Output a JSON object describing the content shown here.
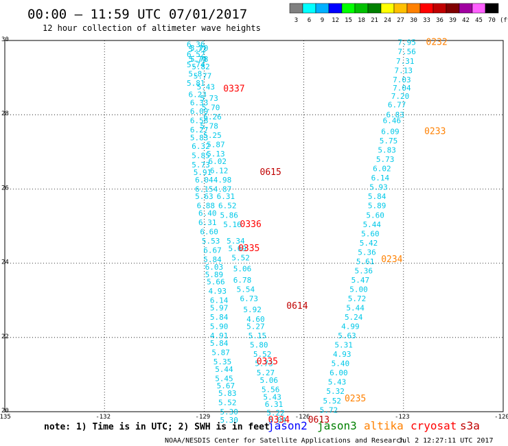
{
  "header": {
    "title": "00:00 – 11:59 UTC 07/01/2017",
    "subtitle": "12 hour collection of altimeter wave heights"
  },
  "color_scale": {
    "labels": [
      "3",
      "6",
      "9",
      "12",
      "15",
      "18",
      "21",
      "24",
      "27",
      "30",
      "33",
      "36",
      "39",
      "42",
      "45",
      "70"
    ],
    "unit": "(ft)",
    "colors": [
      "#808080",
      "#00ffff",
      "#00b0ff",
      "#0000ff",
      "#00ff00",
      "#00c000",
      "#008000",
      "#ffff00",
      "#ffc000",
      "#ff8000",
      "#ff0000",
      "#c00000",
      "#800000",
      "#a000a0",
      "#ff60ff",
      "#000000"
    ]
  },
  "footer": {
    "note": "note: 1) Time is in UTC; 2) SWH is in feet",
    "credit": "NOAA/NESDIS Center for Satellite Applications and Research",
    "timestamp": "Jul  2 12:27:11 UTC 2017"
  },
  "legend": [
    {
      "label": "jason2",
      "color": "#0000ff"
    },
    {
      "label": "jason3",
      "color": "#008000"
    },
    {
      "label": "altika",
      "color": "#ff8000"
    },
    {
      "label": "cryosat",
      "color": "#ff0000"
    },
    {
      "label": "s3a",
      "color": "#c00000"
    }
  ],
  "chart_data": {
    "type": "scatter",
    "xlim": [
      -135,
      -120
    ],
    "ylim": [
      20,
      30
    ],
    "x_ticks": [
      "-135",
      "-132",
      "-129",
      "-126",
      "-123",
      "-120"
    ],
    "y_ticks": [
      "20",
      "22",
      "24",
      "26",
      "28",
      "30"
    ],
    "grid": true,
    "point_color": "#00c8e8",
    "series": [
      {
        "name": "track-1",
        "values": [
          {
            "x": -129.25,
            "y": 29.9,
            "v": "6.36"
          },
          {
            "x": -129.2,
            "y": 29.77,
            "v": "5.72"
          },
          {
            "x": -129.15,
            "y": 29.8,
            "v": "5.70"
          },
          {
            "x": -129.25,
            "y": 29.63,
            "v": "6.52"
          },
          {
            "x": -129.2,
            "y": 29.5,
            "v": "5.70"
          },
          {
            "x": -129.15,
            "y": 29.5,
            "v": "5.78"
          },
          {
            "x": -129.25,
            "y": 29.35,
            "v": "5.74"
          },
          {
            "x": -129.1,
            "y": 29.3,
            "v": "5.82"
          },
          {
            "x": -129.27,
            "y": 29.1,
            "v": "5.8"
          },
          {
            "x": -129.05,
            "y": 29.05,
            "v": "5.77"
          },
          {
            "x": -129.25,
            "y": 28.85,
            "v": "5.81"
          },
          {
            "x": -128.95,
            "y": 28.75,
            "v": "5.43"
          },
          {
            "x": -129.2,
            "y": 28.55,
            "v": "6.23"
          },
          {
            "x": -128.85,
            "y": 28.45,
            "v": "5.73"
          },
          {
            "x": -129.15,
            "y": 28.33,
            "v": "6.33"
          },
          {
            "x": -128.8,
            "y": 28.2,
            "v": "5.70"
          },
          {
            "x": -129.15,
            "y": 28.1,
            "v": "6.09"
          },
          {
            "x": -128.75,
            "y": 27.95,
            "v": "6.26"
          },
          {
            "x": -129.15,
            "y": 27.85,
            "v": "6.58"
          },
          {
            "x": -128.85,
            "y": 27.7,
            "v": "5.78"
          },
          {
            "x": -129.15,
            "y": 27.6,
            "v": "6.27"
          },
          {
            "x": -128.75,
            "y": 27.45,
            "v": "5.25"
          },
          {
            "x": -129.15,
            "y": 27.38,
            "v": "5.83"
          },
          {
            "x": -128.65,
            "y": 27.2,
            "v": "5.87"
          },
          {
            "x": -129.1,
            "y": 27.15,
            "v": "6.32"
          },
          {
            "x": -128.65,
            "y": 26.95,
            "v": "5.13"
          },
          {
            "x": -129.1,
            "y": 26.9,
            "v": "5.85"
          },
          {
            "x": -128.6,
            "y": 26.75,
            "v": "6.02"
          },
          {
            "x": -129.1,
            "y": 26.65,
            "v": "5.73"
          },
          {
            "x": -128.55,
            "y": 26.5,
            "v": "6.12"
          },
          {
            "x": -129.05,
            "y": 26.45,
            "v": "5.91"
          },
          {
            "x": -128.45,
            "y": 26.25,
            "v": "4.98"
          },
          {
            "x": -129.0,
            "y": 26.25,
            "v": "6.04"
          },
          {
            "x": -128.45,
            "y": 26.0,
            "v": "4.87"
          },
          {
            "x": -129.0,
            "y": 26.0,
            "v": "6.15"
          },
          {
            "x": -128.35,
            "y": 25.8,
            "v": "6.31"
          },
          {
            "x": -129.0,
            "y": 25.8,
            "v": "5.63"
          },
          {
            "x": -128.3,
            "y": 25.55,
            "v": "6.52"
          },
          {
            "x": -128.95,
            "y": 25.55,
            "v": "6.88"
          },
          {
            "x": -128.25,
            "y": 25.3,
            "v": "5.86"
          },
          {
            "x": -128.9,
            "y": 25.35,
            "v": "6.40"
          },
          {
            "x": -128.15,
            "y": 25.05,
            "v": "5.16"
          },
          {
            "x": -128.9,
            "y": 25.1,
            "v": "6.31"
          },
          {
            "x": -128.85,
            "y": 24.85,
            "v": "6.60"
          },
          {
            "x": -128.05,
            "y": 24.6,
            "v": "5.34"
          },
          {
            "x": -128.8,
            "y": 24.6,
            "v": "5.53"
          },
          {
            "x": -128.0,
            "y": 24.4,
            "v": "5.69"
          },
          {
            "x": -128.75,
            "y": 24.35,
            "v": "6.67"
          },
          {
            "x": -127.9,
            "y": 24.15,
            "v": "5.52"
          },
          {
            "x": -128.75,
            "y": 24.1,
            "v": "5.84"
          },
          {
            "x": -128.7,
            "y": 23.9,
            "v": "6.03"
          },
          {
            "x": -127.85,
            "y": 23.85,
            "v": "5.06"
          },
          {
            "x": -128.7,
            "y": 23.7,
            "v": "5.89"
          },
          {
            "x": -127.85,
            "y": 23.55,
            "v": "6.78"
          },
          {
            "x": -128.65,
            "y": 23.5,
            "v": "5.66"
          },
          {
            "x": -127.75,
            "y": 23.3,
            "v": "5.54"
          },
          {
            "x": -128.6,
            "y": 23.25,
            "v": "4.93"
          },
          {
            "x": -127.65,
            "y": 23.05,
            "v": "6.73"
          },
          {
            "x": -128.55,
            "y": 23.0,
            "v": "6.14"
          },
          {
            "x": -127.55,
            "y": 22.75,
            "v": "5.92"
          },
          {
            "x": -128.55,
            "y": 22.8,
            "v": "5.97"
          },
          {
            "x": -127.45,
            "y": 22.5,
            "v": "4.60"
          },
          {
            "x": -128.55,
            "y": 22.55,
            "v": "5.84"
          },
          {
            "x": -127.45,
            "y": 22.3,
            "v": "5.27"
          },
          {
            "x": -128.55,
            "y": 22.3,
            "v": "5.90"
          },
          {
            "x": -127.4,
            "y": 22.05,
            "v": "5.15"
          },
          {
            "x": -128.55,
            "y": 22.05,
            "v": "4.91"
          },
          {
            "x": -127.35,
            "y": 21.8,
            "v": "5.80"
          },
          {
            "x": -128.55,
            "y": 21.85,
            "v": "5.84"
          },
          {
            "x": -127.25,
            "y": 21.55,
            "v": "5.52"
          },
          {
            "x": -128.5,
            "y": 21.6,
            "v": "5.87"
          },
          {
            "x": -127.2,
            "y": 21.3,
            "v": "5.73"
          },
          {
            "x": -128.45,
            "y": 21.35,
            "v": "5.35"
          },
          {
            "x": -127.15,
            "y": 21.05,
            "v": "5.27"
          },
          {
            "x": -128.4,
            "y": 21.15,
            "v": "5.44"
          },
          {
            "x": -127.05,
            "y": 20.85,
            "v": "5.06"
          },
          {
            "x": -128.4,
            "y": 20.9,
            "v": "5.45"
          },
          {
            "x": -127.0,
            "y": 20.6,
            "v": "5.56"
          },
          {
            "x": -128.35,
            "y": 20.7,
            "v": "5.67"
          },
          {
            "x": -126.95,
            "y": 20.4,
            "v": "5.43"
          },
          {
            "x": -128.3,
            "y": 20.5,
            "v": "5.83"
          },
          {
            "x": -126.9,
            "y": 20.2,
            "v": "6.31"
          },
          {
            "x": -128.3,
            "y": 20.25,
            "v": "5.52"
          },
          {
            "x": -126.85,
            "y": 19.97,
            "v": "5.22"
          },
          {
            "x": -128.25,
            "y": 20.0,
            "v": "5.30"
          },
          {
            "x": -126.8,
            "y": 19.78,
            "v": "5.04"
          },
          {
            "x": -128.25,
            "y": 19.78,
            "v": "5.30"
          }
        ]
      },
      {
        "name": "track-2",
        "values": [
          {
            "x": -122.9,
            "y": 29.95,
            "v": "7.95"
          },
          {
            "x": -122.9,
            "y": 29.7,
            "v": "7.56"
          },
          {
            "x": -122.95,
            "y": 29.45,
            "v": "7.31"
          },
          {
            "x": -123.0,
            "y": 29.2,
            "v": "7.13"
          },
          {
            "x": -123.05,
            "y": 28.95,
            "v": "7.03"
          },
          {
            "x": -123.05,
            "y": 28.72,
            "v": "7.04"
          },
          {
            "x": -123.1,
            "y": 28.5,
            "v": "7.20"
          },
          {
            "x": -123.2,
            "y": 28.27,
            "v": "6.77"
          },
          {
            "x": -123.25,
            "y": 28.0,
            "v": "6.83"
          },
          {
            "x": -123.35,
            "y": 27.85,
            "v": "6.46"
          },
          {
            "x": -123.4,
            "y": 27.55,
            "v": "6.09"
          },
          {
            "x": -123.45,
            "y": 27.3,
            "v": "5.75"
          },
          {
            "x": -123.5,
            "y": 27.05,
            "v": "5.83"
          },
          {
            "x": -123.55,
            "y": 26.8,
            "v": "5.73"
          },
          {
            "x": -123.65,
            "y": 26.55,
            "v": "6.02"
          },
          {
            "x": -123.7,
            "y": 26.3,
            "v": "6.14"
          },
          {
            "x": -123.75,
            "y": 26.05,
            "v": "5.93"
          },
          {
            "x": -123.8,
            "y": 25.8,
            "v": "5.84"
          },
          {
            "x": -123.8,
            "y": 25.55,
            "v": "5.89"
          },
          {
            "x": -123.85,
            "y": 25.3,
            "v": "5.60"
          },
          {
            "x": -123.95,
            "y": 25.05,
            "v": "5.44"
          },
          {
            "x": -124.0,
            "y": 24.8,
            "v": "5.60"
          },
          {
            "x": -124.05,
            "y": 24.55,
            "v": "5.42"
          },
          {
            "x": -124.1,
            "y": 24.3,
            "v": "5.36"
          },
          {
            "x": -124.15,
            "y": 24.05,
            "v": "5.61"
          },
          {
            "x": -124.2,
            "y": 23.8,
            "v": "5.36"
          },
          {
            "x": -124.3,
            "y": 23.55,
            "v": "5.47"
          },
          {
            "x": -124.35,
            "y": 23.3,
            "v": "5.00"
          },
          {
            "x": -124.4,
            "y": 23.05,
            "v": "5.72"
          },
          {
            "x": -124.45,
            "y": 22.8,
            "v": "5.44"
          },
          {
            "x": -124.5,
            "y": 22.55,
            "v": "5.24"
          },
          {
            "x": -124.6,
            "y": 22.3,
            "v": "4.99"
          },
          {
            "x": -124.7,
            "y": 22.05,
            "v": "5.63"
          },
          {
            "x": -124.8,
            "y": 21.8,
            "v": "5.31"
          },
          {
            "x": -124.85,
            "y": 21.55,
            "v": "4.93"
          },
          {
            "x": -124.9,
            "y": 21.3,
            "v": "5.40"
          },
          {
            "x": -124.95,
            "y": 21.05,
            "v": "6.00"
          },
          {
            "x": -125.0,
            "y": 20.8,
            "v": "5.43"
          },
          {
            "x": -125.05,
            "y": 20.55,
            "v": "5.32"
          },
          {
            "x": -125.15,
            "y": 20.3,
            "v": "5.52"
          },
          {
            "x": -125.25,
            "y": 20.05,
            "v": "5.72"
          }
        ]
      }
    ],
    "pass_labels": [
      {
        "x": -122.0,
        "y": 29.95,
        "text": "0232",
        "color": "#ff8000"
      },
      {
        "x": -128.1,
        "y": 28.7,
        "text": "0337",
        "color": "#ff0000"
      },
      {
        "x": -122.05,
        "y": 27.55,
        "text": "0233",
        "color": "#ff8000"
      },
      {
        "x": -127.0,
        "y": 26.45,
        "text": "0615",
        "color": "#c00000"
      },
      {
        "x": -127.6,
        "y": 25.05,
        "text": "0336",
        "color": "#ff0000"
      },
      {
        "x": -127.65,
        "y": 24.4,
        "text": "0335",
        "color": "#ff0000"
      },
      {
        "x": -123.35,
        "y": 24.1,
        "text": "0234",
        "color": "#ff8000"
      },
      {
        "x": -126.2,
        "y": 22.85,
        "text": "0614",
        "color": "#c00000"
      },
      {
        "x": -127.1,
        "y": 21.35,
        "text": "0335",
        "color": "#ff0000"
      },
      {
        "x": -124.45,
        "y": 20.35,
        "text": "0235",
        "color": "#ff8000"
      },
      {
        "x": -126.75,
        "y": 19.78,
        "text": "0334",
        "color": "#ff0000"
      },
      {
        "x": -125.55,
        "y": 19.78,
        "text": "0613",
        "color": "#c00000"
      }
    ]
  }
}
